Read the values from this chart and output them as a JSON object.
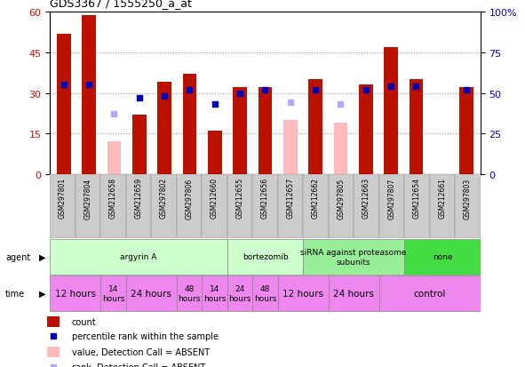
{
  "title": "GDS3367 / 1555250_a_at",
  "samples": [
    "GSM297801",
    "GSM297804",
    "GSM212658",
    "GSM212659",
    "GSM297802",
    "GSM297806",
    "GSM212660",
    "GSM212655",
    "GSM212656",
    "GSM212657",
    "GSM212662",
    "GSM297805",
    "GSM212663",
    "GSM297807",
    "GSM212654",
    "GSM212661",
    "GSM297803"
  ],
  "count": [
    52,
    59,
    null,
    22,
    34,
    37,
    16,
    32,
    32,
    null,
    35,
    null,
    33,
    47,
    35,
    null,
    32
  ],
  "count_absent": [
    null,
    null,
    12,
    null,
    null,
    null,
    null,
    null,
    null,
    20,
    null,
    19,
    null,
    null,
    null,
    null,
    null
  ],
  "percentile": [
    55,
    55,
    null,
    47,
    48,
    52,
    43,
    50,
    52,
    null,
    52,
    null,
    52,
    54,
    54,
    null,
    52
  ],
  "percentile_absent": [
    null,
    null,
    37,
    null,
    null,
    null,
    null,
    null,
    null,
    44,
    null,
    43,
    null,
    null,
    null,
    null,
    null
  ],
  "ylim_left": [
    0,
    60
  ],
  "ylim_right": [
    0,
    100
  ],
  "yticks_left": [
    0,
    15,
    30,
    45,
    60
  ],
  "yticks_right": [
    0,
    25,
    50,
    75,
    100
  ],
  "yticklabels_right": [
    "0",
    "25",
    "50",
    "75",
    "100%"
  ],
  "agent_groups": [
    {
      "label": "argyrin A",
      "start": 0,
      "end": 7,
      "color": "#ccffcc"
    },
    {
      "label": "bortezomib",
      "start": 7,
      "end": 10,
      "color": "#ccffcc"
    },
    {
      "label": "siRNA against proteasome\nsubunits",
      "start": 10,
      "end": 14,
      "color": "#99ee99"
    },
    {
      "label": "none",
      "start": 14,
      "end": 17,
      "color": "#44dd44"
    }
  ],
  "time_groups": [
    {
      "label": "12 hours",
      "start": 0,
      "end": 2,
      "fontsize": 7.5
    },
    {
      "label": "14\nhours",
      "start": 2,
      "end": 3,
      "fontsize": 6.5
    },
    {
      "label": "24 hours",
      "start": 3,
      "end": 5,
      "fontsize": 7.5
    },
    {
      "label": "48\nhours",
      "start": 5,
      "end": 6,
      "fontsize": 6.5
    },
    {
      "label": "14\nhours",
      "start": 6,
      "end": 7,
      "fontsize": 6.5
    },
    {
      "label": "24\nhours",
      "start": 7,
      "end": 8,
      "fontsize": 6.5
    },
    {
      "label": "48\nhours",
      "start": 8,
      "end": 9,
      "fontsize": 6.5
    },
    {
      "label": "12 hours",
      "start": 9,
      "end": 11,
      "fontsize": 7.5
    },
    {
      "label": "24 hours",
      "start": 11,
      "end": 13,
      "fontsize": 7.5
    },
    {
      "label": "control",
      "start": 13,
      "end": 17,
      "fontsize": 7.5
    }
  ],
  "time_color": "#ee88ee",
  "bar_color": "#bb1100",
  "bar_absent_color": "#ffbbbb",
  "dot_color": "#0000bb",
  "dot_absent_color": "#aaaaff",
  "bar_width": 0.55,
  "dot_size": 22,
  "grid_color": "#999999",
  "bg_color": "#ffffff",
  "left_label_color": "#cc1100",
  "right_label_color": "#0000cc",
  "xlabel_gray": "#cccccc",
  "plot_bg": "#ffffff"
}
